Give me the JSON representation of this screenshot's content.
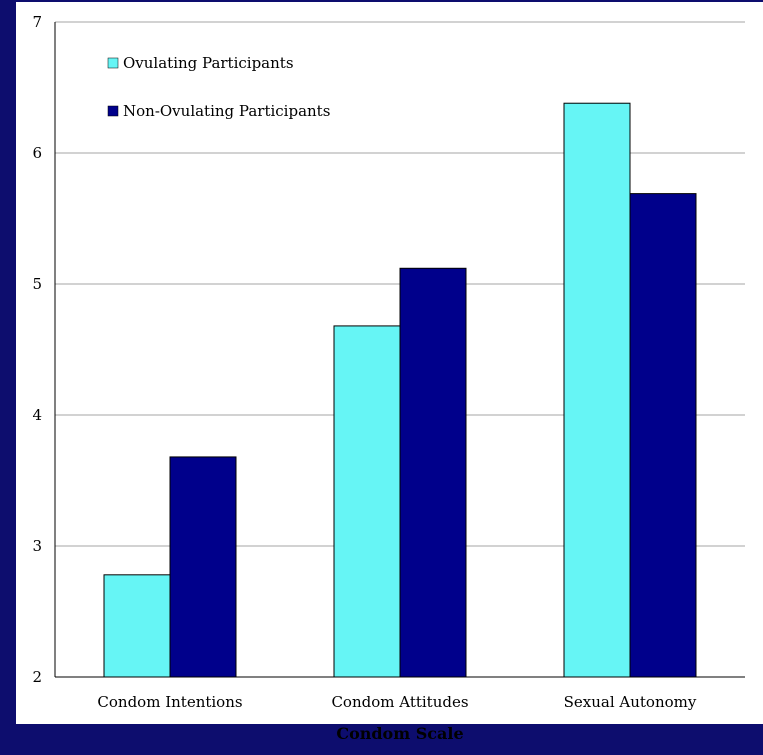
{
  "chart_data": {
    "type": "bar",
    "title": "",
    "xlabel": "Condom Scale",
    "ylabel": "",
    "categories": [
      "Condom Intentions",
      "Condom Attitudes",
      "Sexual Autonomy"
    ],
    "series": [
      {
        "name": "Ovulating Participants",
        "values": [
          2.78,
          4.68,
          6.38
        ],
        "color": "#66f5f5"
      },
      {
        "name": "Non-Ovulating Participants",
        "values": [
          3.68,
          5.12,
          5.69
        ],
        "color": "#00008b"
      }
    ],
    "ylim": [
      2,
      7
    ],
    "yticks": [
      "2",
      "3",
      "4",
      "5",
      "6",
      "7"
    ],
    "grid": true,
    "legend_position": "top-left"
  },
  "colors": {
    "frame": "#0d0d6e",
    "background": "#ffffff",
    "gridline": "#a6a6a6",
    "bar_border": "#000000"
  }
}
